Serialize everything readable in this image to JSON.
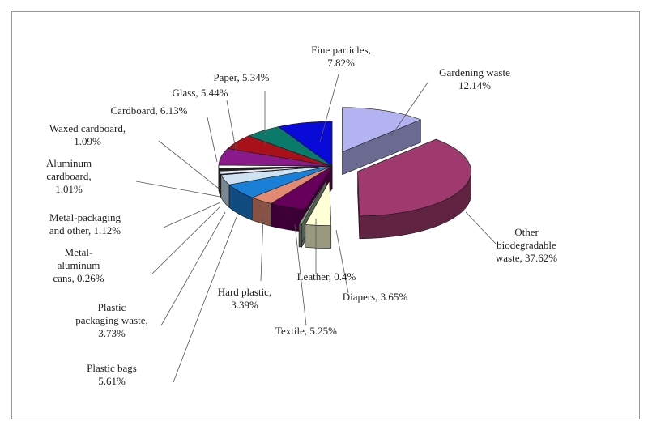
{
  "chart_data": {
    "type": "pie",
    "style": "3d-exploded",
    "title": "",
    "legend": "none",
    "slices": [
      {
        "name": "Gardening waste",
        "value": 12.14,
        "label": "Gardening waste\n12.14%",
        "color": "#b3b3f2",
        "exploded": true
      },
      {
        "name": "Other biodegradable waste",
        "value": 37.62,
        "label": "Other\nbiodegradable\nwaste, 37.62%",
        "color": "#a03a6e",
        "exploded": true
      },
      {
        "name": "Diapers",
        "value": 3.65,
        "label": "Diapers, 3.65%",
        "color": "#ffffd6",
        "exploded": true
      },
      {
        "name": "Leather",
        "value": 0.4,
        "label": "Leather, 0.4%",
        "color": "#8a9e86",
        "exploded": true
      },
      {
        "name": "Textile",
        "value": 5.25,
        "label": "Textile, 5.25%",
        "color": "#66005a",
        "exploded": false
      },
      {
        "name": "Hard plastic",
        "value": 3.39,
        "label": "Hard plastic,\n3.39%",
        "color": "#e28a72",
        "exploded": false
      },
      {
        "name": "Plastic bags",
        "value": 5.61,
        "label": "Plastic bags\n5.61%",
        "color": "#1a7fd6",
        "exploded": false
      },
      {
        "name": "Plastic packaging waste",
        "value": 3.73,
        "label": "Plastic\npackaging waste,\n3.73%",
        "color": "#cfe2f2",
        "exploded": false
      },
      {
        "name": "Metal-aluminum cans",
        "value": 0.26,
        "label": "Metal-\naluminum\ncans, 0.26%",
        "color": "#222266",
        "exploded": false
      },
      {
        "name": "Metal-packaging and other",
        "value": 1.12,
        "label": "Metal-packaging\nand other, 1.12%",
        "color": "#e9e9f5",
        "exploded": false
      },
      {
        "name": "Aluminum cardboard",
        "value": 1.01,
        "label": "Aluminum\ncardboard,\n1.01%",
        "color": "#202020",
        "exploded": false
      },
      {
        "name": "Waxed cardboard",
        "value": 1.09,
        "label": "Waxed cardboard,\n1.09%",
        "color": "#ffffff",
        "exploded": false
      },
      {
        "name": "Cardboard",
        "value": 6.13,
        "label": "Cardboard, 6.13%",
        "color": "#8a1a8a",
        "exploded": false
      },
      {
        "name": "Glass",
        "value": 5.44,
        "label": "Glass, 5.44%",
        "color": "#a8101a",
        "exploded": false
      },
      {
        "name": "Paper",
        "value": 5.34,
        "label": "Paper, 5.34%",
        "color": "#0a7a6a",
        "exploded": false
      },
      {
        "name": "Fine particles",
        "value": 7.82,
        "label": "Fine particles,\n7.82%",
        "color": "#0a0ad8",
        "exploded": false
      }
    ]
  }
}
